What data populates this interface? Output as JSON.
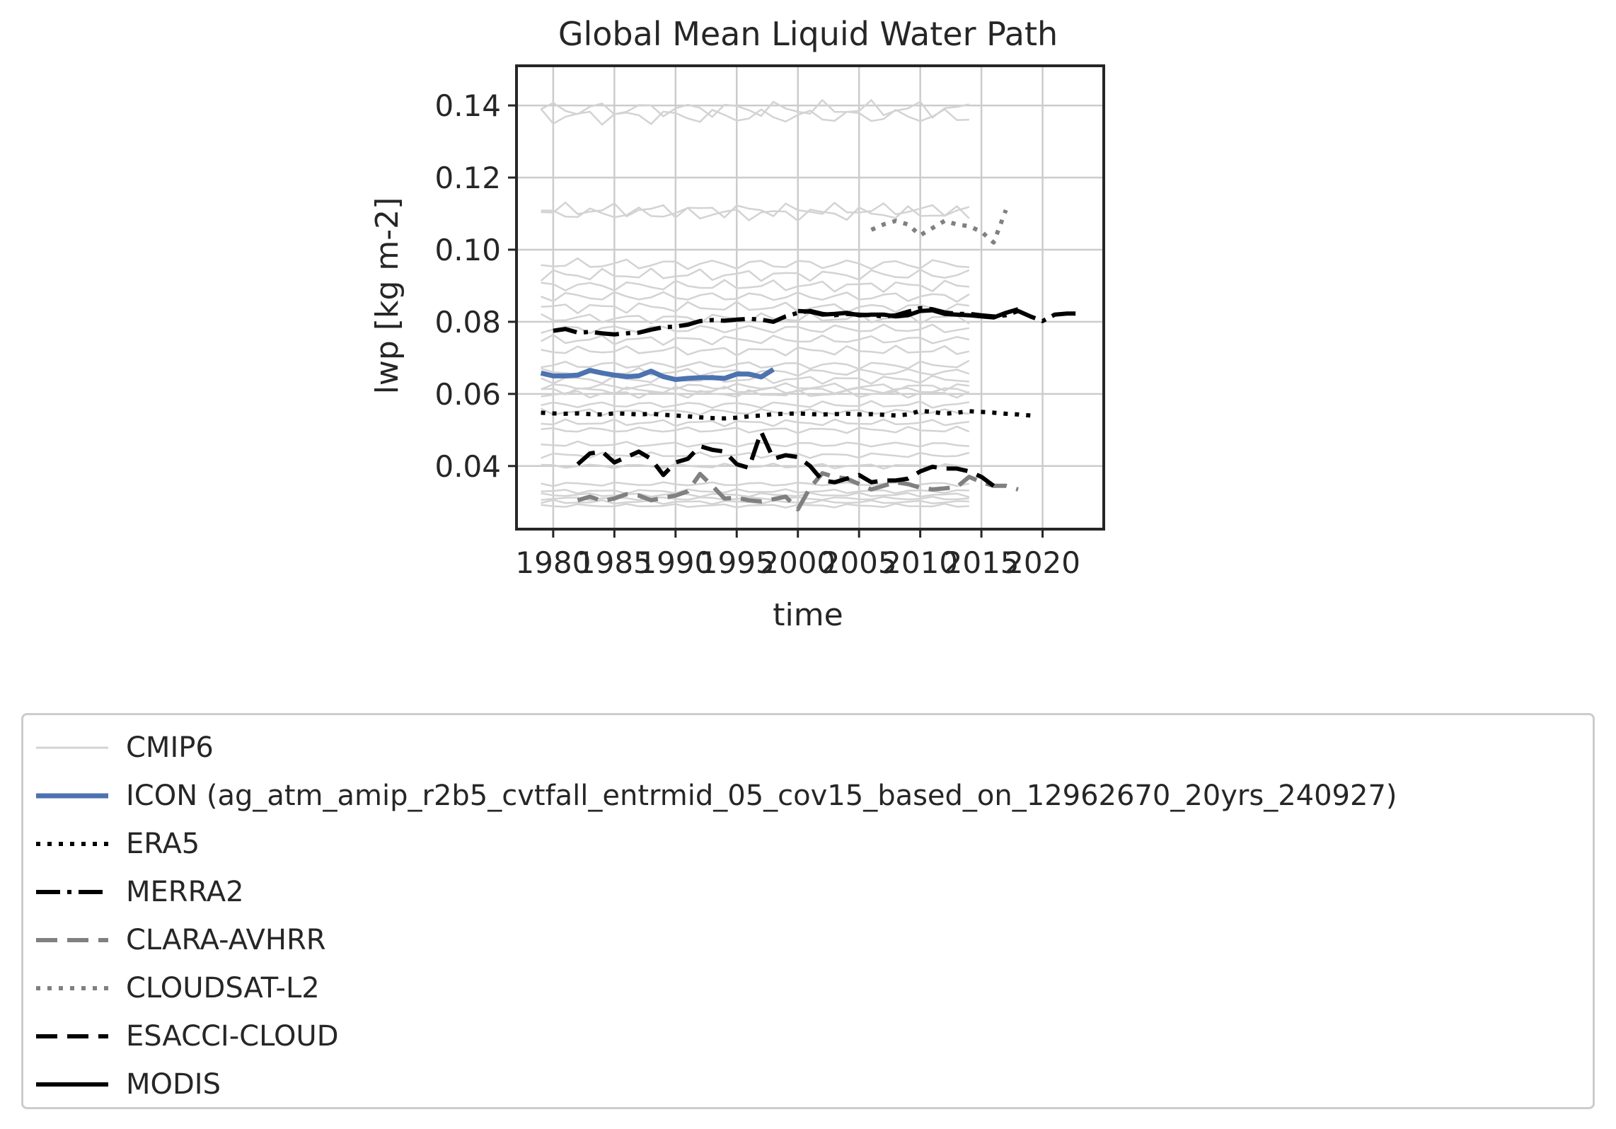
{
  "chart_data": {
    "type": "line",
    "title": "Global Mean Liquid Water Path",
    "xlabel": "time",
    "ylabel": "lwp [kg m-2]",
    "xlim": [
      1977,
      2025
    ],
    "ylim": [
      0.0225,
      0.151
    ],
    "xticks": [
      1980,
      1985,
      1990,
      1995,
      2000,
      2005,
      2010,
      2015,
      2020
    ],
    "xtick_labels": [
      "1980",
      "1985",
      "1990",
      "1995",
      "2000",
      "2005",
      "2010",
      "2015",
      "2020"
    ],
    "yticks": [
      0.04,
      0.06,
      0.08,
      0.1,
      0.12,
      0.14
    ],
    "ytick_labels": [
      "0.04",
      "0.06",
      "0.08",
      "0.10",
      "0.12",
      "0.14"
    ],
    "grid": true,
    "legend_position": "below",
    "colors": {
      "cmip6": "#d3d3d3",
      "icon": "#4c72b0",
      "era5": "#000000",
      "merra2": "#000000",
      "clara": "#808080",
      "cloudsat": "#808080",
      "esacci": "#000000",
      "modis": "#000000",
      "grid": "#cccccc",
      "axes": "#262626"
    },
    "cmip6_members": [
      {
        "base": 0.139,
        "x_start": 1979,
        "x_end": 2014
      },
      {
        "base": 0.137,
        "x_start": 1979,
        "x_end": 2014
      },
      {
        "base": 0.111,
        "x_start": 1979,
        "x_end": 2014
      },
      {
        "base": 0.11,
        "x_start": 1979,
        "x_end": 2014
      },
      {
        "base": 0.096,
        "x_start": 1979,
        "x_end": 2014
      },
      {
        "base": 0.093,
        "x_start": 1979,
        "x_end": 2014
      },
      {
        "base": 0.09,
        "x_start": 1979,
        "x_end": 2014
      },
      {
        "base": 0.087,
        "x_start": 1979,
        "x_end": 2014
      },
      {
        "base": 0.084,
        "x_start": 1979,
        "x_end": 2014
      },
      {
        "base": 0.081,
        "x_start": 1979,
        "x_end": 2014
      },
      {
        "base": 0.078,
        "x_start": 1979,
        "x_end": 2014
      },
      {
        "base": 0.075,
        "x_start": 1979,
        "x_end": 2014
      },
      {
        "base": 0.072,
        "x_start": 1979,
        "x_end": 2014
      },
      {
        "base": 0.068,
        "x_start": 1979,
        "x_end": 2014
      },
      {
        "base": 0.066,
        "x_start": 1979,
        "x_end": 2014
      },
      {
        "base": 0.064,
        "x_start": 1979,
        "x_end": 2014
      },
      {
        "base": 0.062,
        "x_start": 1979,
        "x_end": 2014
      },
      {
        "base": 0.061,
        "x_start": 1979,
        "x_end": 2014
      },
      {
        "base": 0.06,
        "x_start": 1979,
        "x_end": 2014
      },
      {
        "base": 0.057,
        "x_start": 1979,
        "x_end": 2014
      },
      {
        "base": 0.055,
        "x_start": 1979,
        "x_end": 2014
      },
      {
        "base": 0.052,
        "x_start": 1979,
        "x_end": 2014
      },
      {
        "base": 0.05,
        "x_start": 1979,
        "x_end": 2014
      },
      {
        "base": 0.046,
        "x_start": 1979,
        "x_end": 2014
      },
      {
        "base": 0.043,
        "x_start": 1979,
        "x_end": 2014
      },
      {
        "base": 0.04,
        "x_start": 1979,
        "x_end": 2014
      },
      {
        "base": 0.035,
        "x_start": 1979,
        "x_end": 2014
      },
      {
        "base": 0.033,
        "x_start": 1979,
        "x_end": 2014
      },
      {
        "base": 0.032,
        "x_start": 1979,
        "x_end": 2014
      },
      {
        "base": 0.031,
        "x_start": 1979,
        "x_end": 2014
      },
      {
        "base": 0.03,
        "x_start": 1979,
        "x_end": 2014
      },
      {
        "base": 0.029,
        "x_start": 1979,
        "x_end": 2014
      }
    ],
    "series": [
      {
        "name": "CMIP6",
        "style": "cmip6"
      },
      {
        "name": "ICON (ag_atm_amip_r2b5_cvtfall_entrmid_05_cov15_based_on_12962670_20yrs_240927)",
        "style": "icon",
        "x": [
          1979,
          1980,
          1981,
          1982,
          1983,
          1984,
          1985,
          1986,
          1987,
          1988,
          1989,
          1990,
          1991,
          1992,
          1993,
          1994,
          1995,
          1996,
          1997,
          1998
        ],
        "y": [
          0.0658,
          0.065,
          0.065,
          0.0652,
          0.0665,
          0.0658,
          0.0652,
          0.0648,
          0.065,
          0.0663,
          0.0648,
          0.064,
          0.0643,
          0.0645,
          0.0645,
          0.0643,
          0.0655,
          0.0655,
          0.0647,
          0.0668
        ]
      },
      {
        "name": "ERA5",
        "style": "era5",
        "x": [
          1979,
          1980,
          1981,
          1982,
          1983,
          1984,
          1985,
          1986,
          1987,
          1988,
          1989,
          1990,
          1991,
          1992,
          1993,
          1994,
          1995,
          1996,
          1997,
          1998,
          1999,
          2000,
          2001,
          2002,
          2003,
          2004,
          2005,
          2006,
          2007,
          2008,
          2009,
          2010,
          2011,
          2012,
          2013,
          2014,
          2015,
          2016,
          2017,
          2018,
          2019
        ],
        "y": [
          0.0548,
          0.0546,
          0.0545,
          0.0546,
          0.0544,
          0.0543,
          0.0546,
          0.0545,
          0.0543,
          0.0545,
          0.0542,
          0.054,
          0.0538,
          0.0535,
          0.0533,
          0.0532,
          0.0534,
          0.0538,
          0.054,
          0.0544,
          0.0545,
          0.0546,
          0.0544,
          0.0543,
          0.0544,
          0.0545,
          0.0543,
          0.0544,
          0.0542,
          0.054,
          0.0543,
          0.0553,
          0.055,
          0.0545,
          0.0548,
          0.0552,
          0.055,
          0.0548,
          0.0545,
          0.0543,
          0.054
        ]
      },
      {
        "name": "MERRA2",
        "style": "merra2",
        "x": [
          1980,
          1981,
          1982,
          1983,
          1984,
          1985,
          1986,
          1987,
          1988,
          1989,
          1990,
          1991,
          1992,
          1993,
          1994,
          1995,
          1996,
          1997,
          1998,
          1999,
          2000,
          2001,
          2002,
          2003,
          2004,
          2005,
          2006,
          2007,
          2008,
          2009,
          2010,
          2011,
          2012,
          2013,
          2014,
          2015,
          2016,
          2017,
          2018,
          2019,
          2020,
          2021,
          2022,
          2023
        ],
        "y": [
          0.0775,
          0.078,
          0.077,
          0.0772,
          0.0768,
          0.0765,
          0.0768,
          0.077,
          0.0778,
          0.0785,
          0.0787,
          0.0792,
          0.0802,
          0.0805,
          0.0803,
          0.0806,
          0.0808,
          0.0806,
          0.08,
          0.0815,
          0.0825,
          0.083,
          0.0822,
          0.0818,
          0.0822,
          0.082,
          0.0818,
          0.0815,
          0.0818,
          0.0828,
          0.0838,
          0.0835,
          0.0826,
          0.0822,
          0.0822,
          0.0818,
          0.0815,
          0.0818,
          0.083,
          0.0815,
          0.0802,
          0.082,
          0.0823,
          0.0823
        ]
      },
      {
        "name": "CLARA-AVHRR",
        "style": "clara",
        "x": [
          1982,
          1983,
          1984,
          1985,
          1986,
          1987,
          1988,
          1989,
          1990,
          1991,
          1992,
          1993,
          1994,
          1995,
          1996,
          1997,
          1998,
          1999,
          2000,
          2001,
          2002,
          2003,
          2004,
          2005,
          2006,
          2007,
          2008,
          2009,
          2010,
          2011,
          2012,
          2013,
          2014,
          2015,
          2016,
          2017,
          2018
        ],
        "y": [
          0.0305,
          0.0315,
          0.0303,
          0.031,
          0.0322,
          0.0318,
          0.0305,
          0.0312,
          0.0318,
          0.033,
          0.0378,
          0.0345,
          0.031,
          0.0312,
          0.0305,
          0.0302,
          0.0308,
          0.0315,
          0.028,
          0.034,
          0.038,
          0.037,
          0.0365,
          0.035,
          0.0335,
          0.0345,
          0.0355,
          0.035,
          0.034,
          0.0335,
          0.0338,
          0.0342,
          0.037,
          0.0355,
          0.0345,
          0.0345,
          0.0335
        ]
      },
      {
        "name": "CLOUDSAT-L2",
        "style": "cloudsat",
        "x": [
          2006,
          2007,
          2008,
          2009,
          2010,
          2011,
          2012,
          2013,
          2014,
          2015,
          2016,
          2017
        ],
        "y": [
          0.1055,
          0.107,
          0.108,
          0.107,
          0.104,
          0.106,
          0.108,
          0.107,
          0.1065,
          0.105,
          0.102,
          0.111
        ]
      },
      {
        "name": "ESACCI-CLOUD",
        "style": "esacci",
        "x": [
          1982,
          1983,
          1984,
          1985,
          1986,
          1987,
          1988,
          1989,
          1990,
          1991,
          1992,
          1993,
          1994,
          1995,
          1996,
          1997,
          1998,
          1999,
          2000,
          2001,
          2002,
          2003,
          2004,
          2005,
          2006,
          2007,
          2008,
          2009,
          2010,
          2011,
          2012,
          2013,
          2014,
          2015,
          2016
        ],
        "y": [
          0.0405,
          0.0435,
          0.044,
          0.041,
          0.0425,
          0.044,
          0.042,
          0.0375,
          0.041,
          0.042,
          0.0455,
          0.0445,
          0.044,
          0.0405,
          0.0395,
          0.0495,
          0.042,
          0.043,
          0.0425,
          0.04,
          0.036,
          0.0355,
          0.0365,
          0.0375,
          0.0355,
          0.036,
          0.036,
          0.0365,
          0.0385,
          0.0398,
          0.0393,
          0.0393,
          0.0385,
          0.037,
          0.0345
        ]
      },
      {
        "name": "MODIS",
        "style": "modis",
        "x": [
          2000,
          2001,
          2002,
          2003,
          2004,
          2005,
          2006,
          2007,
          2008,
          2009,
          2010,
          2011,
          2012,
          2013,
          2014,
          2015,
          2016,
          2017,
          2018
        ],
        "y": [
          0.083,
          0.0828,
          0.082,
          0.0822,
          0.0825,
          0.0818,
          0.082,
          0.082,
          0.0815,
          0.0818,
          0.083,
          0.0832,
          0.0822,
          0.082,
          0.0818,
          0.0815,
          0.0812,
          0.0825,
          0.0835
        ]
      }
    ]
  }
}
